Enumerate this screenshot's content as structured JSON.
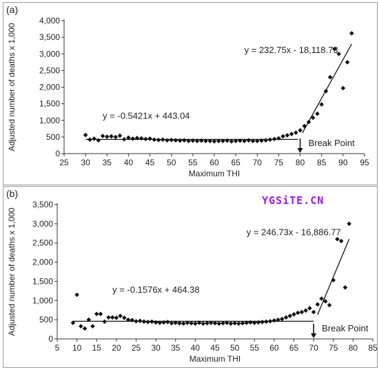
{
  "watermark": "YGSiTE.CN",
  "chart_data": [
    {
      "type": "scatter",
      "panel_label": "(a)",
      "xlabel": "Maximum THI",
      "ylabel": "Adjusted number of deaths x 1,000",
      "xlim": [
        25,
        95
      ],
      "ylim": [
        0,
        4000
      ],
      "xticks": [
        25,
        30,
        35,
        40,
        45,
        50,
        55,
        60,
        65,
        70,
        75,
        80,
        85,
        90,
        95
      ],
      "yticks": [
        0,
        500,
        1000,
        1500,
        2000,
        2500,
        3000,
        3500,
        4000
      ],
      "ytick_labels": [
        "0",
        "500",
        "1,000",
        "1,500",
        "2,000",
        "2,500",
        "3,000",
        "3,500",
        "4,000"
      ],
      "points": [
        [
          30,
          560
        ],
        [
          31,
          420
        ],
        [
          32,
          450
        ],
        [
          33,
          400
        ],
        [
          34,
          530
        ],
        [
          35,
          510
        ],
        [
          36,
          520
        ],
        [
          37,
          500
        ],
        [
          38,
          540
        ],
        [
          39,
          430
        ],
        [
          40,
          480
        ],
        [
          41,
          450
        ],
        [
          42,
          470
        ],
        [
          43,
          460
        ],
        [
          44,
          440
        ],
        [
          45,
          450
        ],
        [
          46,
          420
        ],
        [
          47,
          410
        ],
        [
          48,
          420
        ],
        [
          49,
          400
        ],
        [
          50,
          410
        ],
        [
          51,
          400
        ],
        [
          52,
          390
        ],
        [
          53,
          400
        ],
        [
          54,
          380
        ],
        [
          55,
          390
        ],
        [
          56,
          380
        ],
        [
          57,
          390
        ],
        [
          58,
          380
        ],
        [
          59,
          380
        ],
        [
          60,
          370
        ],
        [
          61,
          380
        ],
        [
          62,
          380
        ],
        [
          63,
          390
        ],
        [
          64,
          370
        ],
        [
          65,
          380
        ],
        [
          66,
          390
        ],
        [
          67,
          380
        ],
        [
          68,
          400
        ],
        [
          69,
          380
        ],
        [
          70,
          380
        ],
        [
          71,
          390
        ],
        [
          72,
          400
        ],
        [
          73,
          420
        ],
        [
          74,
          440
        ],
        [
          75,
          460
        ],
        [
          76,
          520
        ],
        [
          77,
          550
        ],
        [
          78,
          590
        ],
        [
          79,
          630
        ],
        [
          80,
          700
        ],
        [
          81,
          830
        ],
        [
          82,
          950
        ],
        [
          83,
          1080
        ],
        [
          84,
          1200
        ],
        [
          85,
          1480
        ],
        [
          86,
          1880
        ],
        [
          87,
          2300
        ],
        [
          88,
          3150
        ],
        [
          89,
          3000
        ],
        [
          90,
          1970
        ],
        [
          91,
          2750
        ],
        [
          92,
          3620
        ]
      ],
      "fit_lines": [
        {
          "x": [
            30,
            79.5
          ],
          "y": [
            428,
            428
          ]
        },
        {
          "x": [
            80.5,
            92
          ],
          "y": [
            618,
            3296
          ]
        }
      ],
      "equations": [
        {
          "text": "y = -0.5421x + 443.04",
          "x": 34,
          "y": 1050
        },
        {
          "text": "y = 232.75x - 18,118.73",
          "x": 67,
          "y": 3030
        }
      ],
      "break_point": {
        "label": "Break Point",
        "x": 80
      }
    },
    {
      "type": "scatter",
      "panel_label": "(b)",
      "xlabel": "Maximum THI",
      "ylabel": "Adjusted number of deaths x 1,000",
      "xlim": [
        5,
        85
      ],
      "ylim": [
        0,
        3500
      ],
      "xticks": [
        5,
        10,
        15,
        20,
        25,
        30,
        35,
        40,
        45,
        50,
        55,
        60,
        65,
        70,
        75,
        80,
        85
      ],
      "yticks": [
        0,
        500,
        1000,
        1500,
        2000,
        2500,
        3000,
        3500
      ],
      "ytick_labels": [
        "0",
        "500",
        "1,000",
        "1,500",
        "2,000",
        "2,500",
        "3,000",
        "3,500"
      ],
      "points": [
        [
          9,
          420
        ],
        [
          10,
          1150
        ],
        [
          11,
          330
        ],
        [
          12,
          270
        ],
        [
          13,
          500
        ],
        [
          14,
          330
        ],
        [
          15,
          650
        ],
        [
          16,
          650
        ],
        [
          17,
          450
        ],
        [
          18,
          560
        ],
        [
          19,
          560
        ],
        [
          20,
          550
        ],
        [
          21,
          600
        ],
        [
          22,
          550
        ],
        [
          23,
          500
        ],
        [
          24,
          490
        ],
        [
          25,
          460
        ],
        [
          26,
          470
        ],
        [
          27,
          450
        ],
        [
          28,
          440
        ],
        [
          29,
          450
        ],
        [
          30,
          430
        ],
        [
          31,
          420
        ],
        [
          32,
          430
        ],
        [
          33,
          440
        ],
        [
          34,
          410
        ],
        [
          35,
          420
        ],
        [
          36,
          410
        ],
        [
          37,
          400
        ],
        [
          38,
          420
        ],
        [
          39,
          410
        ],
        [
          40,
          400
        ],
        [
          41,
          420
        ],
        [
          42,
          400
        ],
        [
          43,
          410
        ],
        [
          44,
          420
        ],
        [
          45,
          410
        ],
        [
          46,
          400
        ],
        [
          47,
          410
        ],
        [
          48,
          420
        ],
        [
          49,
          400
        ],
        [
          50,
          410
        ],
        [
          51,
          400
        ],
        [
          52,
          410
        ],
        [
          53,
          420
        ],
        [
          54,
          430
        ],
        [
          55,
          420
        ],
        [
          56,
          430
        ],
        [
          57,
          440
        ],
        [
          58,
          450
        ],
        [
          59,
          460
        ],
        [
          60,
          480
        ],
        [
          61,
          500
        ],
        [
          62,
          520
        ],
        [
          63,
          560
        ],
        [
          64,
          600
        ],
        [
          65,
          640
        ],
        [
          66,
          680
        ],
        [
          67,
          700
        ],
        [
          68,
          740
        ],
        [
          69,
          800
        ],
        [
          70,
          700
        ],
        [
          71,
          900
        ],
        [
          72,
          1050
        ],
        [
          73,
          980
        ],
        [
          74,
          880
        ],
        [
          75,
          1530
        ],
        [
          76,
          2600
        ],
        [
          77,
          2550
        ],
        [
          78,
          1340
        ],
        [
          79,
          3000
        ]
      ],
      "fit_lines": [
        {
          "x": [
            9,
            70
          ],
          "y": [
            460,
            460
          ]
        },
        {
          "x": [
            71,
            79
          ],
          "y": [
            630,
            2600
          ]
        }
      ],
      "equations": [
        {
          "text": "y = -0.1576x + 464.38",
          "x": 19,
          "y": 1200
        },
        {
          "text": "y = 246.73x - 16,886.77",
          "x": 53,
          "y": 2700
        }
      ],
      "break_point": {
        "label": "Break Point",
        "x": 70
      }
    }
  ]
}
